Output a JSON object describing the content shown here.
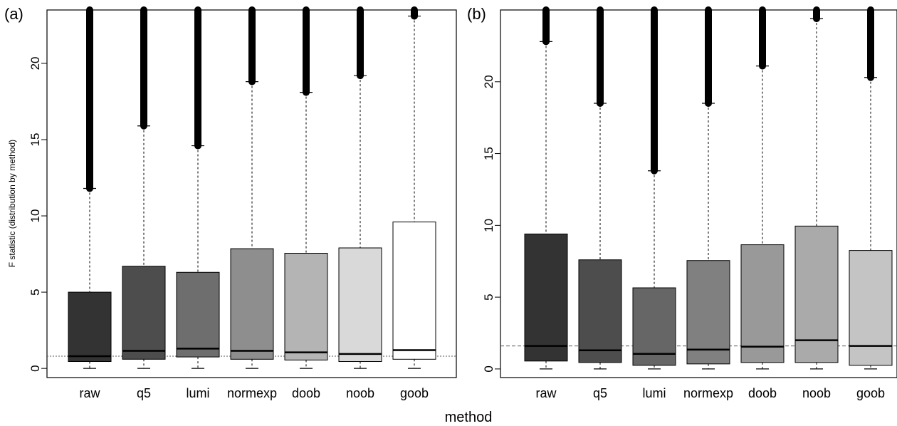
{
  "figure": {
    "xlabel": "method"
  },
  "chart_data": [
    {
      "type": "box",
      "panel_label": "(a)",
      "ylabel": "F statistic (distribution by method)",
      "xlabel": "",
      "categories": [
        "raw",
        "q5",
        "lumi",
        "normexp",
        "doob",
        "noob",
        "goob"
      ],
      "yticks": [
        0,
        5,
        10,
        15,
        20
      ],
      "ylim": [
        -0.6,
        23.5
      ],
      "reference_line": 0.8,
      "boxes": [
        {
          "name": "raw",
          "lower_whisker": 0,
          "q1": 0.45,
          "median": 0.8,
          "q3": 5.0,
          "upper_whisker": 11.8,
          "outliers_from": 11.8,
          "outliers_to": 23.5,
          "fill": "#333333"
        },
        {
          "name": "q5",
          "lower_whisker": 0,
          "q1": 0.6,
          "median": 1.15,
          "q3": 6.7,
          "upper_whisker": 15.9,
          "outliers_from": 15.9,
          "outliers_to": 23.5,
          "fill": "#4d4d4d"
        },
        {
          "name": "lumi",
          "lower_whisker": 0,
          "q1": 0.75,
          "median": 1.3,
          "q3": 6.3,
          "upper_whisker": 14.6,
          "outliers_from": 14.6,
          "outliers_to": 23.5,
          "fill": "#6e6e6e"
        },
        {
          "name": "normexp",
          "lower_whisker": 0,
          "q1": 0.6,
          "median": 1.15,
          "q3": 7.85,
          "upper_whisker": 18.8,
          "outliers_from": 18.8,
          "outliers_to": 23.5,
          "fill": "#8e8e8e"
        },
        {
          "name": "doob",
          "lower_whisker": 0,
          "q1": 0.55,
          "median": 1.05,
          "q3": 7.55,
          "upper_whisker": 18.1,
          "outliers_from": 18.1,
          "outliers_to": 23.5,
          "fill": "#b4b4b4"
        },
        {
          "name": "noob",
          "lower_whisker": 0,
          "q1": 0.45,
          "median": 0.95,
          "q3": 7.9,
          "upper_whisker": 19.2,
          "outliers_from": 19.2,
          "outliers_to": 23.5,
          "fill": "#d9d9d9"
        },
        {
          "name": "goob",
          "lower_whisker": 0,
          "q1": 0.6,
          "median": 1.2,
          "q3": 9.6,
          "upper_whisker": 23.1,
          "outliers_from": 23.1,
          "outliers_to": 23.5,
          "fill": "#ffffff"
        }
      ]
    },
    {
      "type": "box",
      "panel_label": "(b)",
      "ylabel": "",
      "xlabel": "",
      "categories": [
        "raw",
        "q5",
        "lumi",
        "normexp",
        "doob",
        "noob",
        "goob"
      ],
      "yticks": [
        0,
        5,
        10,
        15,
        20
      ],
      "ylim": [
        -0.6,
        25.0
      ],
      "reference_line": 1.6,
      "boxes": [
        {
          "name": "raw",
          "lower_whisker": 0,
          "q1": 0.55,
          "median": 1.6,
          "q3": 9.4,
          "upper_whisker": 22.8,
          "outliers_from": 22.8,
          "outliers_to": 25.0,
          "fill": "#333333"
        },
        {
          "name": "q5",
          "lower_whisker": 0,
          "q1": 0.45,
          "median": 1.3,
          "q3": 7.6,
          "upper_whisker": 18.5,
          "outliers_from": 18.5,
          "outliers_to": 25.0,
          "fill": "#4d4d4d"
        },
        {
          "name": "lumi",
          "lower_whisker": 0,
          "q1": 0.25,
          "median": 1.05,
          "q3": 5.65,
          "upper_whisker": 13.8,
          "outliers_from": 13.8,
          "outliers_to": 25.0,
          "fill": "#666666"
        },
        {
          "name": "normexp",
          "lower_whisker": 0,
          "q1": 0.35,
          "median": 1.35,
          "q3": 7.55,
          "upper_whisker": 18.5,
          "outliers_from": 18.5,
          "outliers_to": 25.0,
          "fill": "#808080"
        },
        {
          "name": "doob",
          "lower_whisker": 0,
          "q1": 0.45,
          "median": 1.55,
          "q3": 8.65,
          "upper_whisker": 21.1,
          "outliers_from": 21.1,
          "outliers_to": 25.0,
          "fill": "#999999"
        },
        {
          "name": "noob",
          "lower_whisker": 0,
          "q1": 0.45,
          "median": 2.0,
          "q3": 9.95,
          "upper_whisker": 24.4,
          "outliers_from": 24.4,
          "outliers_to": 25.0,
          "fill": "#aaaaaa"
        },
        {
          "name": "goob",
          "lower_whisker": 0,
          "q1": 0.25,
          "median": 1.6,
          "q3": 8.25,
          "upper_whisker": 20.3,
          "outliers_from": 20.3,
          "outliers_to": 25.0,
          "fill": "#c4c4c4"
        }
      ]
    }
  ]
}
